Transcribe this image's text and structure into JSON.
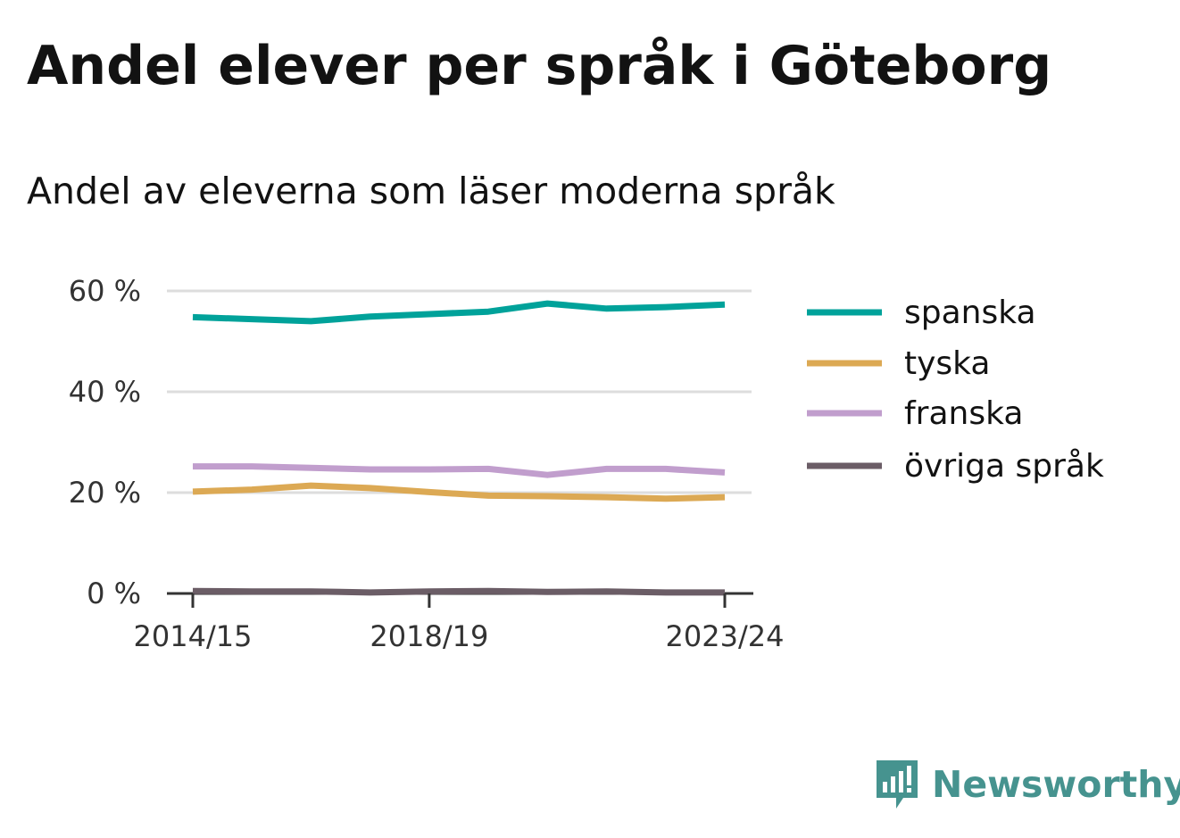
{
  "chart_data": {
    "type": "line",
    "title": "Andel elever per språk i Göteborg",
    "subtitle": "Andel av eleverna som läser moderna språk",
    "xlabel": "",
    "ylabel": "",
    "x": [
      "2014/15",
      "2015/16",
      "2016/17",
      "2017/18",
      "2018/19",
      "2019/20",
      "2020/21",
      "2021/22",
      "2022/23",
      "2023/24"
    ],
    "x_tick_labels": [
      "2014/15",
      "2018/19",
      "2023/24"
    ],
    "ylim": [
      0,
      60
    ],
    "y_ticks": [
      0,
      20,
      40,
      60
    ],
    "y_tick_labels": [
      "0 %",
      "20 %",
      "40 %",
      "60 %"
    ],
    "grid": true,
    "legend_position": "right",
    "series": [
      {
        "name": "spanska",
        "color": "#00a29a",
        "values": [
          54.8,
          54.4,
          54.0,
          54.9,
          55.4,
          55.9,
          57.5,
          56.5,
          56.8,
          57.3
        ]
      },
      {
        "name": "tyska",
        "color": "#dca954",
        "values": [
          20.2,
          20.6,
          21.4,
          20.9,
          20.1,
          19.4,
          19.3,
          19.1,
          18.8,
          19.1
        ]
      },
      {
        "name": "franska",
        "color": "#c19ecd",
        "values": [
          25.2,
          25.2,
          24.9,
          24.6,
          24.6,
          24.7,
          23.5,
          24.7,
          24.7,
          24.0
        ]
      },
      {
        "name": "övriga språk",
        "color": "#6b5d66",
        "values": [
          0.5,
          0.4,
          0.4,
          0.2,
          0.4,
          0.5,
          0.3,
          0.4,
          0.2,
          0.2
        ]
      }
    ]
  },
  "logo": {
    "text": "Newsworthy",
    "icon": "newsworthy-logo-icon",
    "color": "#46938f"
  }
}
